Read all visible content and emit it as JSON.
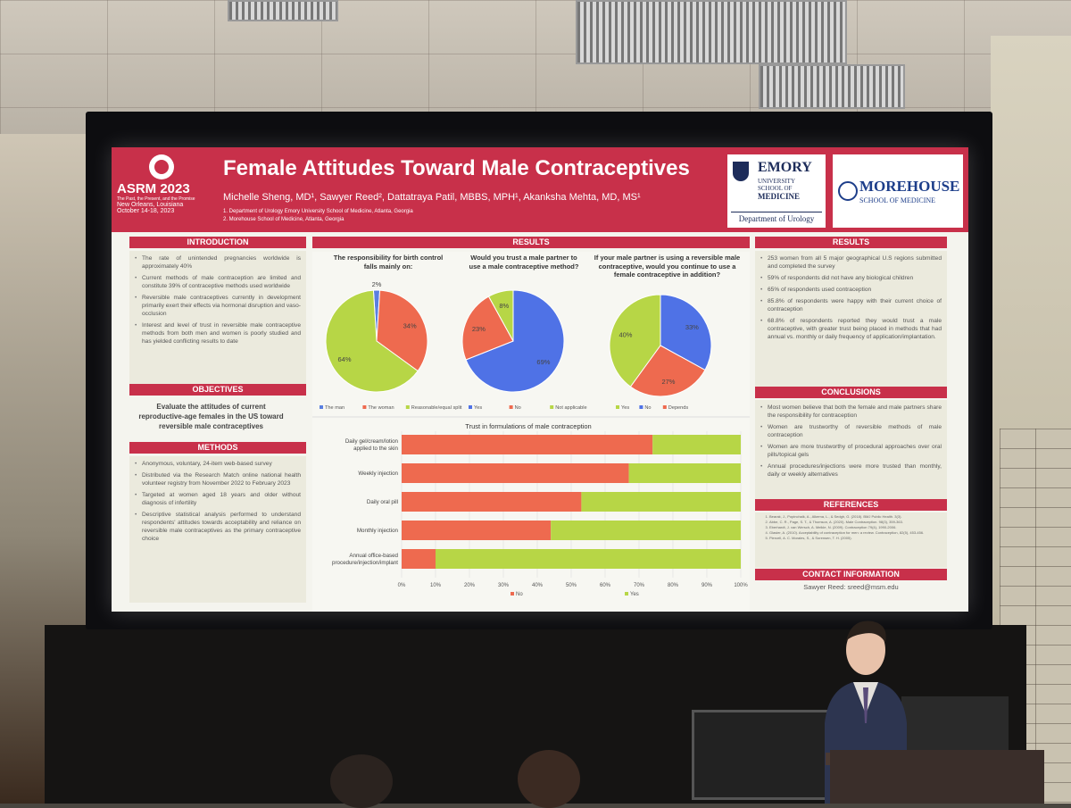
{
  "poster": {
    "title": "Female Attitudes Toward Male Contraceptives",
    "authors": "Michelle Sheng, MD¹, Sawyer Reed², Dattatraya Patil, MBBS, MPH¹, Akanksha Mehta, MD, MS¹",
    "affil1": "1. Department of Urology Emory University School of Medicine, Atlanta, Georgia",
    "affil2": "2. Morehouse School of Medicine, Atlanta, Georgia",
    "asrm": {
      "name": "ASRM 2023",
      "tagline": "The Past, the Present, and the Promise",
      "location": "New Orleans, Louisiana",
      "dates": "October 14-18, 2023"
    },
    "emory": {
      "name": "EMORY",
      "sub1": "UNIVERSITY",
      "sub2": "SCHOOL OF",
      "sub3": "MEDICINE",
      "dept": "Department of Urology"
    },
    "morehouse": {
      "name": "MOREHOUSE",
      "sub": "SCHOOL OF MEDICINE"
    },
    "introduction": {
      "header": "INTRODUCTION",
      "items": [
        "The rate of unintended pregnancies worldwide is approximately 40%",
        "Current methods of male contraception are limited and constitute 39% of contraceptive methods used worldwide",
        "Reversible male contraceptives currently in development primarily exert their effects via hormonal disruption and vaso-occlusion",
        "Interest and level of trust in reversible male contraceptive methods from both men and women is poorly studied and has yielded conflicting results to date"
      ]
    },
    "objectives": {
      "header": "OBJECTIVES",
      "text": "Evaluate the attitudes of current reproductive-age females in the US toward reversible male contraceptives"
    },
    "methods": {
      "header": "METHODS",
      "items": [
        "Anonymous, voluntary, 24-item web-based survey",
        "Distributed via the Research Match online national health volunteer registry from November 2022 to February 2023",
        "Targeted at women aged 18 years and older without diagnosis of infertility",
        "Descriptive statistical analysis performed to understand respondents' attitudes towards acceptability and reliance on reversible male contraceptives as the primary contraceptive choice"
      ]
    },
    "results_header": "RESULTS",
    "results_right": {
      "header": "RESULTS",
      "items": [
        "253 women from all 5 major geographical U.S regions submitted and completed the survey",
        "59% of respondents did not have any biological children",
        "65% of respondents used contraception",
        "85.8% of respondents were happy with their current choice of contraception",
        "68.8% of respondents reported they would trust a male contraceptive, with greater trust being placed in methods that had annual vs. monthly or daily frequency of application/implantation."
      ]
    },
    "conclusions": {
      "header": "CONCLUSIONS",
      "items": [
        "Most women believe that both the female and male partners share the responsibility for contraception",
        "Women are trustworthy of reversible methods of male contraception",
        "Women are more trustworthy of procedural approaches over oral pills/topical gels",
        "Annual procedures/injections were more trusted than monthly, daily or weekly alternatives"
      ]
    },
    "references": {
      "header": "REFERENCES",
      "items": [
        "Bearak, J., Popinchalk, A., Alkema, L., & Sedgh, G. (2018). BMJ Public Health. 3(3).",
        "Abbe, C. R., Page, S. T., & Thomson, A. (2020). Male Contraception. 98(3), 359-363.",
        "Eberhardt, J. van Wersch, A. Meikle, N. (2009). Contraception 79(4), 1990-2006.",
        "Glasier, A. (2010). Acceptability of contraception for men: a review. Contraception, 82(5), 453-456.",
        "Piercell, A. C. Morales, S., & Sorensen, T. H. (2005)."
      ]
    },
    "contact": {
      "header": "CONTACT INFORMATION",
      "text": "Sawyer Reed: sreed@msm.edu"
    }
  },
  "chart_data": [
    {
      "type": "pie",
      "title": "The responsibility for birth control falls mainly on:",
      "categories": [
        "The man",
        "The woman",
        "Reasonable/equal split"
      ],
      "values": [
        2,
        34,
        64
      ],
      "labels": [
        "2%",
        "34%",
        "64%"
      ],
      "colors": [
        "#5a7fe0",
        "#ee6a4f",
        "#b7d646"
      ]
    },
    {
      "type": "pie",
      "title": "Would you trust a male partner to use a male contraceptive method?",
      "categories": [
        "Yes",
        "No",
        "Not applicable"
      ],
      "values": [
        69,
        23,
        8
      ],
      "labels": [
        "69%",
        "23%",
        "8%"
      ],
      "colors": [
        "#4f72e6",
        "#ee6a4f",
        "#b7d646"
      ]
    },
    {
      "type": "pie",
      "title": "If your male partner is using a reversible male contraceptive, would you continue to use a female contraceptive in addition?",
      "categories": [
        "Yes",
        "No",
        "Depends"
      ],
      "values": [
        40,
        33,
        27
      ],
      "labels": [
        "40%",
        "33%",
        "27%"
      ],
      "colors": [
        "#b7d646",
        "#4f72e6",
        "#ee6a4f"
      ]
    },
    {
      "type": "bar",
      "orientation": "horizontal-stacked",
      "title": "Trust in formulations of male contraception",
      "categories": [
        "Daily gel/cream/lotion applied to the skin",
        "Weekly injection",
        "Daily oral pill",
        "Monthly injection",
        "Annual office-based procedure/injection/implant"
      ],
      "series": [
        {
          "name": "No",
          "values": [
            74,
            67,
            53,
            44,
            10
          ],
          "color": "#ee6a4f"
        },
        {
          "name": "Yes",
          "values": [
            26,
            33,
            47,
            56,
            90
          ],
          "color": "#b7d646"
        }
      ],
      "xticks": [
        "0%",
        "10%",
        "20%",
        "30%",
        "40%",
        "50%",
        "60%",
        "70%",
        "80%",
        "90%",
        "100%"
      ],
      "xlim": [
        0,
        100
      ]
    }
  ]
}
